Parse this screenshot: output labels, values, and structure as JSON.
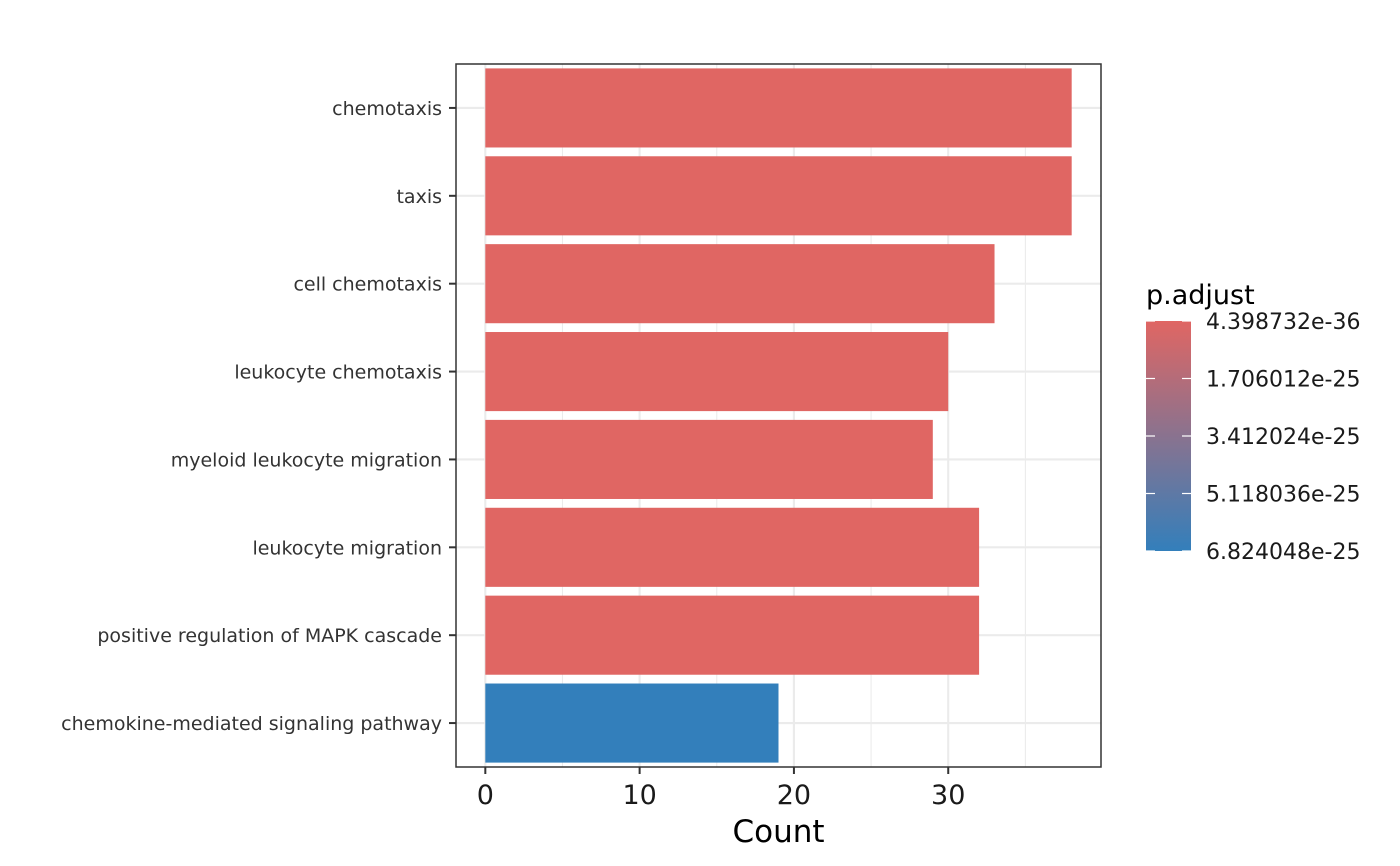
{
  "chart_data": {
    "type": "bar",
    "orientation": "horizontal",
    "categories": [
      "chemotaxis",
      "taxis",
      "cell chemotaxis",
      "leukocyte chemotaxis",
      "myeloid leukocyte migration",
      "leukocyte migration",
      "positive regulation of MAPK cascade",
      "chemokine-mediated signaling pathway"
    ],
    "values": [
      38,
      38,
      33,
      30,
      29,
      32,
      32,
      19
    ],
    "p_adjust": [
      4.398732e-36,
      4.398732e-36,
      4.398732e-36,
      4.398732e-36,
      4.398732e-36,
      4.398732e-36,
      4.398732e-36,
      6.824048e-25
    ],
    "xlabel": "Count",
    "ylabel": "",
    "xlim": [
      -1.9,
      39.9
    ],
    "xticks": [
      "0",
      "10",
      "20",
      "30"
    ],
    "grid": true,
    "legend": {
      "title": "p.adjust",
      "position": "right",
      "labels": [
        "4.398732e-36",
        "1.706012e-25",
        "3.412024e-25",
        "5.118036e-25",
        "6.824048e-25"
      ],
      "color_low": "#e06663",
      "color_high": "#337fbb"
    }
  }
}
